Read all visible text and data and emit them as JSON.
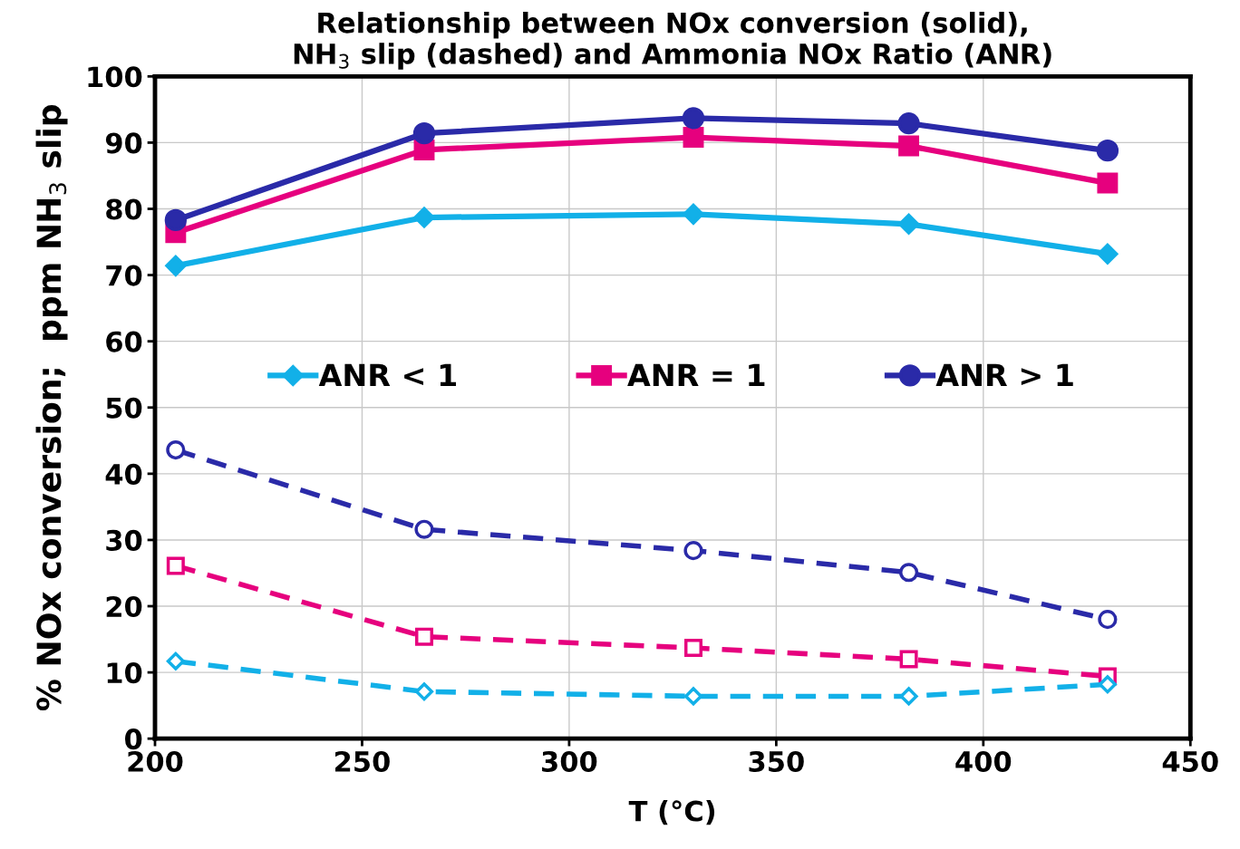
{
  "chart_data": {
    "type": "line",
    "title": "Relationship between NOx conversion (solid),\nNH$_{3}$ slip (dashed) and Ammonia NOx Ratio (ANR)",
    "xlabel": "T (°C)",
    "ylabel": "% NOx conversion;  ppm NH$_{3}$ slip",
    "x": [
      205,
      265,
      330,
      382,
      430
    ],
    "xlim": [
      200,
      450
    ],
    "xticks": [
      200,
      250,
      300,
      350,
      400,
      450
    ],
    "ylim": [
      0,
      100
    ],
    "yticks": [
      0,
      10,
      20,
      30,
      40,
      50,
      60,
      70,
      80,
      90,
      100
    ],
    "grid": true,
    "legend": "center",
    "series": [
      {
        "name": "ANR < 1",
        "color": "#12b0e8",
        "marker": "diamond",
        "line_style": "solid",
        "values": [
          71.4,
          78.7,
          79.2,
          77.7,
          73.2
        ]
      },
      {
        "name": "ANR = 1",
        "color": "#e6007e",
        "marker": "square",
        "line_style": "solid",
        "values": [
          76.4,
          88.9,
          90.8,
          89.5,
          83.9
        ]
      },
      {
        "name": "ANR > 1",
        "color": "#2a2aa8",
        "marker": "circle",
        "line_style": "solid",
        "values": [
          78.3,
          91.4,
          93.7,
          92.9,
          88.8
        ]
      },
      {
        "color": "#2a2aa8",
        "marker": "circle",
        "line_style": "dashed",
        "values": [
          43.6,
          31.6,
          28.4,
          25.1,
          18.0
        ]
      },
      {
        "color": "#e6007e",
        "marker": "square",
        "line_style": "dashed",
        "values": [
          26.1,
          15.4,
          13.7,
          12.0,
          9.4
        ]
      },
      {
        "color": "#12b0e8",
        "marker": "diamond",
        "line_style": "dashed",
        "values": [
          11.7,
          7.1,
          6.4,
          6.4,
          8.2
        ]
      }
    ]
  }
}
